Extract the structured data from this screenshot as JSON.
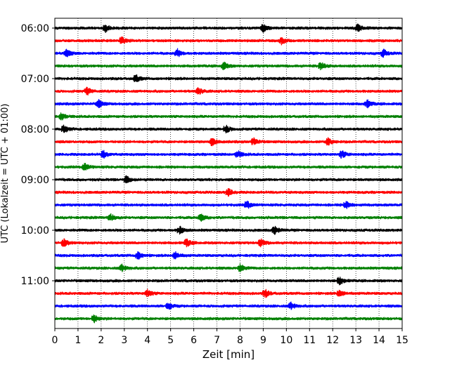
{
  "chart_data": {
    "type": "line",
    "title": "",
    "xlabel": "Zeit  [min]",
    "ylabel": "UTC (Lokalzeit = UTC + 01:00)",
    "xlim": [
      0,
      15
    ],
    "x_ticks": [
      0,
      1,
      2,
      3,
      4,
      5,
      6,
      7,
      8,
      9,
      10,
      11,
      12,
      13,
      14,
      15
    ],
    "y_ticks": [
      "06:00",
      "07:00",
      "08:00",
      "09:00",
      "10:00",
      "11:00"
    ],
    "grid": "vertical dotted lines at each minute",
    "start_time_utc": "06:00",
    "trace_interval_min": 15,
    "color_cycle": [
      "#000000",
      "#ff0000",
      "#0000ff",
      "#008000"
    ],
    "series": [
      {
        "start": "06:00",
        "events_min": [
          2.2,
          9.0,
          13.1
        ]
      },
      {
        "start": "06:15",
        "events_min": [
          2.9,
          9.8
        ]
      },
      {
        "start": "06:30",
        "events_min": [
          0.5,
          5.3,
          14.2
        ]
      },
      {
        "start": "06:45",
        "events_min": [
          7.3,
          11.5
        ]
      },
      {
        "start": "07:00",
        "events_min": [
          3.5
        ]
      },
      {
        "start": "07:15",
        "events_min": [
          1.4,
          6.2
        ]
      },
      {
        "start": "07:30",
        "events_min": [
          1.9,
          13.5
        ]
      },
      {
        "start": "07:45",
        "events_min": [
          0.3
        ]
      },
      {
        "start": "08:00",
        "events_min": [
          0.4,
          7.4
        ]
      },
      {
        "start": "08:15",
        "events_min": [
          6.8,
          8.6,
          11.8
        ]
      },
      {
        "start": "08:30",
        "events_min": [
          2.1,
          7.9,
          12.4
        ]
      },
      {
        "start": "08:45",
        "events_min": [
          1.3
        ]
      },
      {
        "start": "09:00",
        "events_min": [
          3.1
        ]
      },
      {
        "start": "09:15",
        "events_min": [
          7.5
        ]
      },
      {
        "start": "09:30",
        "events_min": [
          8.3,
          12.6
        ]
      },
      {
        "start": "09:45",
        "events_min": [
          2.4,
          6.3
        ]
      },
      {
        "start": "10:00",
        "events_min": [
          5.4,
          9.5
        ]
      },
      {
        "start": "10:15",
        "events_min": [
          0.4,
          5.7,
          8.9
        ]
      },
      {
        "start": "10:30",
        "events_min": [
          3.6,
          5.2
        ]
      },
      {
        "start": "10:45",
        "events_min": [
          2.9,
          8.0
        ]
      },
      {
        "start": "11:00",
        "events_min": [
          12.3
        ]
      },
      {
        "start": "11:15",
        "events_min": [
          4.0,
          9.1,
          12.3
        ]
      },
      {
        "start": "11:30",
        "events_min": [
          4.9,
          10.2
        ]
      },
      {
        "start": "11:45",
        "events_min": [
          1.7
        ]
      }
    ]
  }
}
